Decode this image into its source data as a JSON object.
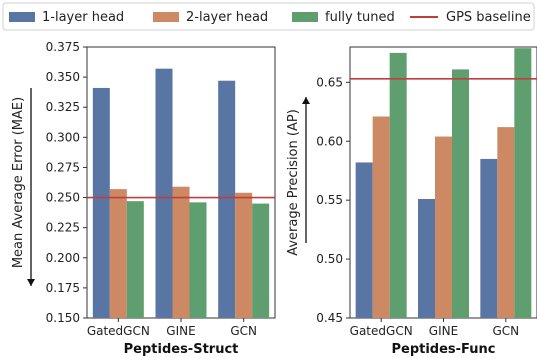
{
  "colors": {
    "1-layer head": "#5975a4",
    "2-layer head": "#cc8963",
    "fully tuned": "#5f9e6e",
    "baseline": "#c03d3e"
  },
  "legend": {
    "items": [
      "1-layer head",
      "2-layer head",
      "fully tuned"
    ],
    "baseline_label": "GPS baseline"
  },
  "chart_data": [
    {
      "type": "bar",
      "xlabel": "Peptides-Struct",
      "ylabel": "Mean Average Error (MAE)",
      "ylabel_arrow": "down",
      "categories": [
        "GatedGCN",
        "GINE",
        "GCN"
      ],
      "series": [
        {
          "name": "1-layer head",
          "values": [
            0.341,
            0.357,
            0.347
          ]
        },
        {
          "name": "2-layer head",
          "values": [
            0.257,
            0.259,
            0.254
          ]
        },
        {
          "name": "fully tuned",
          "values": [
            0.247,
            0.246,
            0.245
          ]
        }
      ],
      "baseline": {
        "name": "GPS baseline",
        "value": 0.25
      },
      "ylim": [
        0.15,
        0.375
      ],
      "yticks": [
        0.15,
        0.175,
        0.2,
        0.225,
        0.25,
        0.275,
        0.3,
        0.325,
        0.35,
        0.375
      ],
      "ytick_labels": [
        "0.150",
        "0.175",
        "0.200",
        "0.225",
        "0.250",
        "0.275",
        "0.300",
        "0.325",
        "0.350",
        "0.375"
      ]
    },
    {
      "type": "bar",
      "xlabel": "Peptides-Func",
      "ylabel": "Average Precision (AP)",
      "ylabel_arrow": "up",
      "categories": [
        "GatedGCN",
        "GINE",
        "GCN"
      ],
      "series": [
        {
          "name": "1-layer head",
          "values": [
            0.582,
            0.551,
            0.585
          ]
        },
        {
          "name": "2-layer head",
          "values": [
            0.621,
            0.604,
            0.612
          ]
        },
        {
          "name": "fully tuned",
          "values": [
            0.675,
            0.661,
            0.679
          ]
        }
      ],
      "baseline": {
        "name": "GPS baseline",
        "value": 0.653
      },
      "ylim": [
        0.45,
        0.68
      ],
      "yticks": [
        0.45,
        0.5,
        0.55,
        0.6,
        0.65
      ],
      "ytick_labels": [
        "0.45",
        "0.50",
        "0.55",
        "0.60",
        "0.65"
      ]
    }
  ]
}
